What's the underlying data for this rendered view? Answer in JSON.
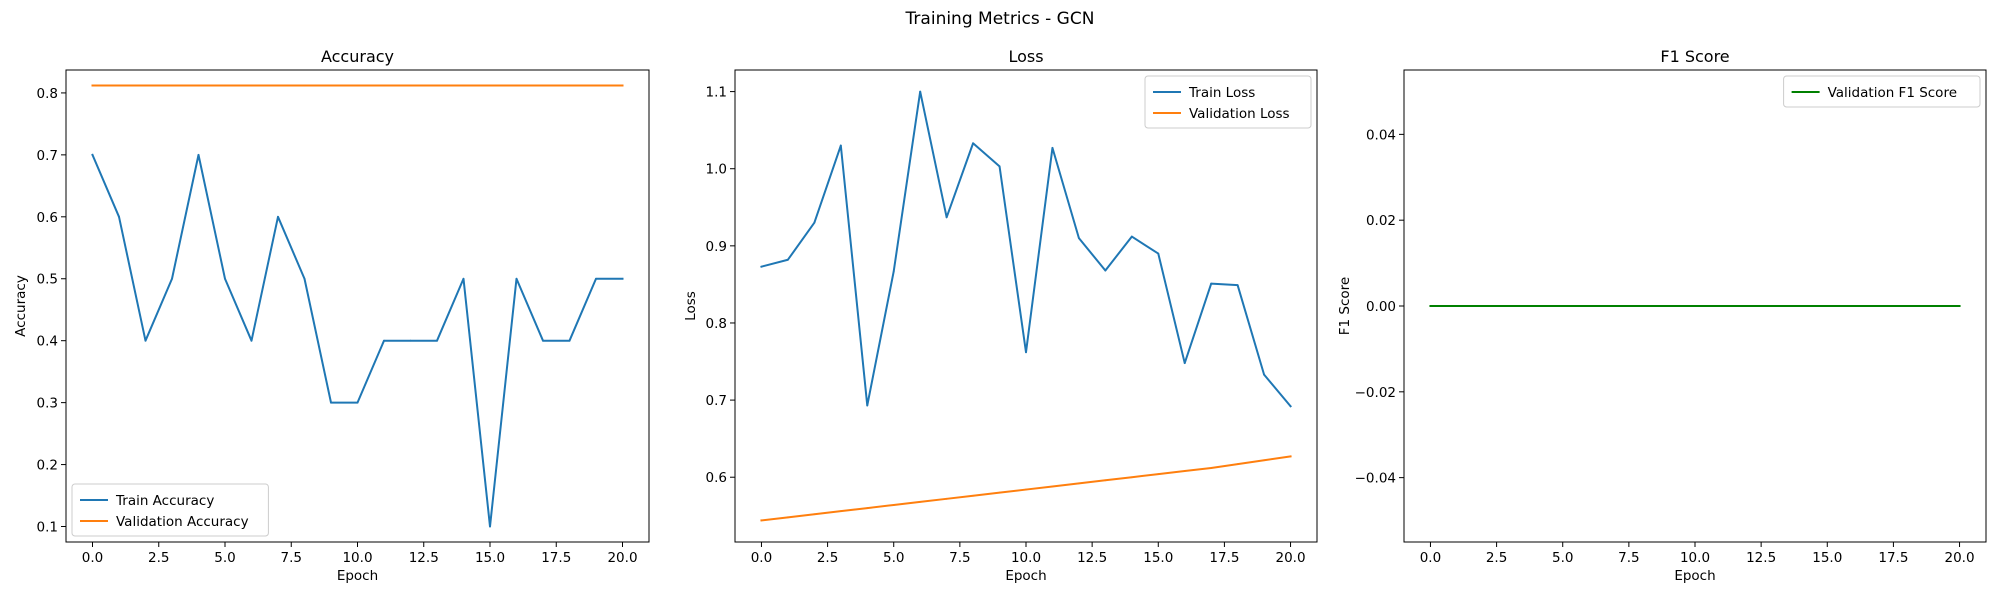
{
  "figure": {
    "title": "Training Metrics - GCN"
  },
  "chart_data": [
    {
      "type": "line",
      "title": "Accuracy",
      "xlabel": "Epoch",
      "ylabel": "Accuracy",
      "xlim": [
        -1.0,
        21.0
      ],
      "ylim": [
        0.075,
        0.837
      ],
      "xticks": [
        0,
        2.5,
        5,
        7.5,
        10,
        12.5,
        15,
        17.5,
        20
      ],
      "xtick_labels": [
        "0.0",
        "2.5",
        "5.0",
        "7.5",
        "10.0",
        "12.5",
        "15.0",
        "17.5",
        "20.0"
      ],
      "yticks": [
        0.1,
        0.2,
        0.3,
        0.4,
        0.5,
        0.6,
        0.7,
        0.8
      ],
      "ytick_labels": [
        "0.1",
        "0.2",
        "0.3",
        "0.4",
        "0.5",
        "0.6",
        "0.7",
        "0.8"
      ],
      "legend": "lower-left",
      "grid": false,
      "x": [
        0,
        1,
        2,
        3,
        4,
        5,
        6,
        7,
        8,
        9,
        10,
        11,
        12,
        13,
        14,
        15,
        16,
        17,
        18,
        19,
        20
      ],
      "series": [
        {
          "name": "Train Accuracy",
          "color": "#1f77b4",
          "values": [
            0.7,
            0.6,
            0.4,
            0.5,
            0.7,
            0.5,
            0.4,
            0.6,
            0.5,
            0.3,
            0.3,
            0.4,
            0.4,
            0.4,
            0.5,
            0.1,
            0.5,
            0.4,
            0.4,
            0.5,
            0.5
          ]
        },
        {
          "name": "Validation Accuracy",
          "color": "#ff7f0e",
          "values": [
            0.812,
            0.812,
            0.812,
            0.812,
            0.812,
            0.812,
            0.812,
            0.812,
            0.812,
            0.812,
            0.812,
            0.812,
            0.812,
            0.812,
            0.812,
            0.812,
            0.812,
            0.812,
            0.812,
            0.812,
            0.812
          ]
        }
      ]
    },
    {
      "type": "line",
      "title": "Loss",
      "xlabel": "Epoch",
      "ylabel": "Loss",
      "xlim": [
        -1.0,
        21.0
      ],
      "ylim": [
        0.516,
        1.128
      ],
      "xticks": [
        0,
        2.5,
        5,
        7.5,
        10,
        12.5,
        15,
        17.5,
        20
      ],
      "xtick_labels": [
        "0.0",
        "2.5",
        "5.0",
        "7.5",
        "10.0",
        "12.5",
        "15.0",
        "17.5",
        "20.0"
      ],
      "yticks": [
        0.6,
        0.7,
        0.8,
        0.9,
        1.0,
        1.1
      ],
      "ytick_labels": [
        "0.6",
        "0.7",
        "0.8",
        "0.9",
        "1.0",
        "1.1"
      ],
      "legend": "upper-right",
      "grid": false,
      "x": [
        0,
        1,
        2,
        3,
        4,
        5,
        6,
        7,
        8,
        9,
        10,
        11,
        12,
        13,
        14,
        15,
        16,
        17,
        18,
        19,
        20
      ],
      "series": [
        {
          "name": "Train Loss",
          "color": "#1f77b4",
          "values": [
            0.873,
            0.882,
            0.93,
            1.03,
            0.693,
            0.867,
            1.1,
            0.937,
            1.033,
            1.003,
            0.762,
            1.027,
            0.91,
            0.868,
            0.912,
            0.89,
            0.748,
            0.851,
            0.849,
            0.733,
            0.692
          ]
        },
        {
          "name": "Validation Loss",
          "color": "#ff7f0e",
          "values": [
            0.544,
            0.548,
            0.552,
            0.556,
            0.56,
            0.564,
            0.568,
            0.572,
            0.576,
            0.58,
            0.584,
            0.588,
            0.592,
            0.596,
            0.6,
            0.604,
            0.608,
            0.612,
            0.617,
            0.622,
            0.627
          ]
        }
      ]
    },
    {
      "type": "line",
      "title": "F1 Score",
      "xlabel": "Epoch",
      "ylabel": "F1 Score",
      "xlim": [
        -1.0,
        21.0
      ],
      "ylim": [
        -0.055,
        0.055
      ],
      "xticks": [
        0,
        2.5,
        5,
        7.5,
        10,
        12.5,
        15,
        17.5,
        20
      ],
      "xtick_labels": [
        "0.0",
        "2.5",
        "5.0",
        "7.5",
        "10.0",
        "12.5",
        "15.0",
        "17.5",
        "20.0"
      ],
      "yticks": [
        -0.04,
        -0.02,
        0.0,
        0.02,
        0.04
      ],
      "ytick_labels": [
        "−0.04",
        "−0.02",
        "0.00",
        "0.02",
        "0.04"
      ],
      "legend": "upper-right",
      "grid": false,
      "x": [
        0,
        1,
        2,
        3,
        4,
        5,
        6,
        7,
        8,
        9,
        10,
        11,
        12,
        13,
        14,
        15,
        16,
        17,
        18,
        19,
        20
      ],
      "series": [
        {
          "name": "Validation F1 Score",
          "color": "#008000",
          "values": [
            0,
            0,
            0,
            0,
            0,
            0,
            0,
            0,
            0,
            0,
            0,
            0,
            0,
            0,
            0,
            0,
            0,
            0,
            0,
            0,
            0
          ]
        }
      ]
    }
  ]
}
